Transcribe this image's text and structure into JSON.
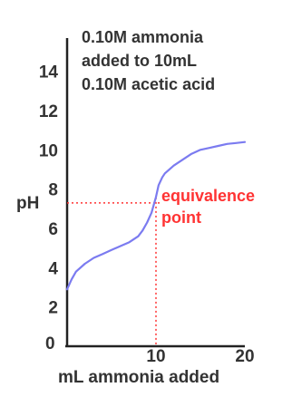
{
  "chart_data": {
    "type": "line",
    "title_lines": [
      "0.10M ammonia",
      "added to 10mL",
      "0.10M acetic acid"
    ],
    "xlabel": "mL ammonia added",
    "ylabel": "pH",
    "xlim": [
      0,
      20
    ],
    "ylim": [
      0,
      15
    ],
    "x_ticks": [
      {
        "value": 10,
        "label": "10"
      },
      {
        "value": 20,
        "label": "20"
      }
    ],
    "x_origin_label": "0",
    "y_ticks": [
      {
        "value": 2,
        "label": "2"
      },
      {
        "value": 4,
        "label": "4"
      },
      {
        "value": 6,
        "label": "6"
      },
      {
        "value": 8,
        "label": "8"
      },
      {
        "value": 10,
        "label": "10"
      },
      {
        "value": 12,
        "label": "12"
      },
      {
        "value": 14,
        "label": "14"
      }
    ],
    "series": [
      {
        "color": "#7b7bf0",
        "x": [
          0,
          0.5,
          1,
          2,
          3,
          4,
          5,
          6,
          7,
          8,
          8.5,
          9,
          9.5,
          10,
          10.3,
          10.7,
          11,
          12,
          13,
          14,
          15,
          16,
          17,
          18,
          19,
          20
        ],
        "y": [
          2.9,
          3.4,
          3.8,
          4.2,
          4.5,
          4.7,
          4.9,
          5.1,
          5.3,
          5.6,
          5.9,
          6.3,
          6.8,
          7.6,
          8.2,
          8.6,
          8.8,
          9.2,
          9.5,
          9.8,
          10.0,
          10.1,
          10.2,
          10.3,
          10.35,
          10.4
        ]
      }
    ],
    "annotations": {
      "equivalence_point": {
        "x": 10,
        "y": 7.3,
        "label_lines": [
          "equivalence",
          "point"
        ],
        "color": "#ff3333"
      }
    },
    "grid": false,
    "legend": "none"
  }
}
